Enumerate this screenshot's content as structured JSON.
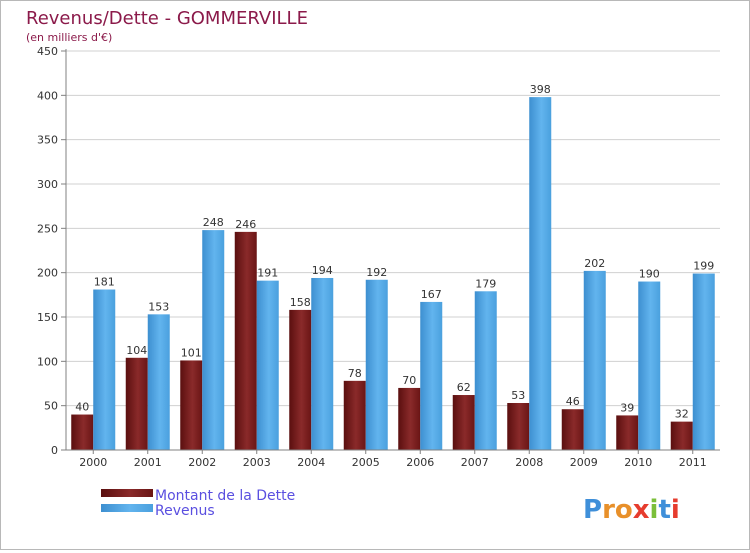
{
  "chart_data": {
    "type": "bar",
    "title": "Revenus/Dette - GOMMERVILLE",
    "subtitle": "(en milliers d'€)",
    "categories": [
      "2000",
      "2001",
      "2002",
      "2003",
      "2004",
      "2005",
      "2006",
      "2007",
      "2008",
      "2009",
      "2010",
      "2011"
    ],
    "series": [
      {
        "name": "Montant de la Dette",
        "color": "#7a1c1c",
        "values": [
          40,
          104,
          101,
          246,
          158,
          78,
          70,
          62,
          53,
          46,
          39,
          32
        ]
      },
      {
        "name": "Revenus",
        "color": "#4fa3e0",
        "values": [
          181,
          153,
          248,
          191,
          194,
          192,
          167,
          179,
          398,
          202,
          190,
          199
        ]
      }
    ],
    "ylim": [
      0,
      450
    ],
    "yticks": [
      0,
      50,
      100,
      150,
      200,
      250,
      300,
      350,
      400,
      450
    ],
    "xlabel": "",
    "ylabel": "",
    "grid": true,
    "legend_position": "bottom-left"
  },
  "branding": {
    "logo_text": "Proxiti",
    "letter_colors": [
      "#3f8fd9",
      "#e8902a",
      "#e8902a",
      "#e63c2e",
      "#7bbf3a",
      "#3f8fd9",
      "#e63c2e"
    ]
  },
  "colors": {
    "title": "#8b1a4a",
    "legend_text": "#5a4fe0",
    "axis": "#808080",
    "grid": "#d0d0d0",
    "label": "#333333"
  }
}
